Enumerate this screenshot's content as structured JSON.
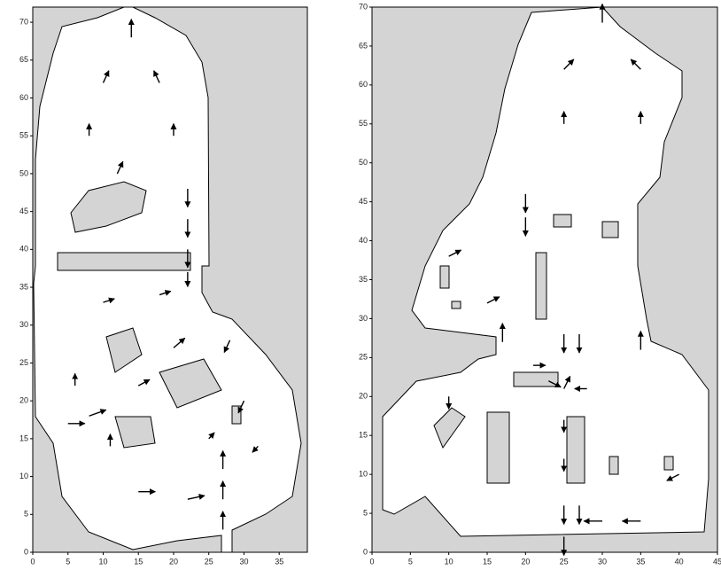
{
  "chart_data": [
    {
      "type": "quiver",
      "x": [
        14,
        10,
        18,
        8,
        20,
        12,
        22,
        22,
        22,
        22,
        18,
        10,
        6,
        5,
        8,
        11,
        15,
        20,
        25,
        15,
        22,
        27,
        27,
        27,
        30,
        32,
        28
      ],
      "y": [
        68,
        62,
        62,
        55,
        55,
        50,
        48,
        44,
        40,
        37,
        34,
        33,
        22,
        17,
        18,
        14,
        22,
        27,
        15,
        8,
        7,
        3,
        7,
        11,
        20,
        14,
        28
      ],
      "u": [
        0,
        0.5,
        -0.5,
        0,
        0,
        0.5,
        0,
        0,
        0,
        0,
        1,
        1,
        0,
        1.5,
        1.5,
        0,
        1,
        1,
        0.5,
        1.5,
        1.5,
        0,
        0,
        0,
        -0.5,
        -0.5,
        -0.5
      ],
      "v": [
        1.5,
        1,
        1,
        1,
        1,
        1,
        -1.5,
        -1.5,
        -1.5,
        -1.2,
        0.3,
        0.3,
        1,
        0,
        0.5,
        1,
        0.5,
        0.8,
        0.5,
        0,
        0.3,
        1.5,
        1.5,
        1.5,
        -1,
        -0.5,
        -1
      ],
      "color": "#000000",
      "xlim": [
        0,
        39
      ],
      "ylim": [
        0,
        72
      ],
      "xticks": [
        0,
        5,
        10,
        15,
        20,
        25,
        30,
        35
      ],
      "yticks": [
        0,
        5,
        10,
        15,
        20,
        25,
        30,
        35,
        40,
        45,
        50,
        55,
        60,
        65,
        70
      ]
    },
    {
      "type": "quiver",
      "x": [
        30,
        25,
        35,
        25,
        35,
        20,
        20,
        10,
        15,
        17,
        21,
        25,
        27,
        35,
        25,
        23,
        28,
        25,
        25,
        25,
        27,
        30,
        35,
        40,
        10,
        25
      ],
      "y": [
        68,
        62,
        62,
        55,
        55,
        46,
        43,
        38,
        32,
        27,
        24,
        28,
        28,
        26,
        21,
        22,
        21,
        17,
        12,
        6,
        6,
        4,
        4,
        10,
        20,
        2
      ],
      "u": [
        0,
        0.8,
        -0.8,
        0,
        0,
        0,
        0,
        1,
        1,
        0,
        1,
        0,
        0,
        0,
        0.5,
        1,
        -1,
        0,
        0,
        0,
        0,
        -1.5,
        -1.5,
        -1,
        0,
        0
      ],
      "v": [
        1.5,
        0.8,
        0.8,
        1,
        1,
        -1.5,
        -1.5,
        0.5,
        0.5,
        1.5,
        0,
        -1.5,
        -1.5,
        1.5,
        1,
        -0.5,
        0,
        -1,
        -1,
        -1.5,
        -1.5,
        0,
        0,
        -0.5,
        -1,
        -1.5
      ],
      "color": "#000000",
      "xlim": [
        0,
        45
      ],
      "ylim": [
        0,
        70
      ],
      "xticks": [
        0,
        5,
        10,
        15,
        20,
        25,
        30,
        35,
        40,
        45
      ],
      "yticks": [
        0,
        5,
        10,
        15,
        20,
        25,
        30,
        35,
        40,
        45,
        50,
        55,
        60,
        65,
        70
      ]
    }
  ]
}
